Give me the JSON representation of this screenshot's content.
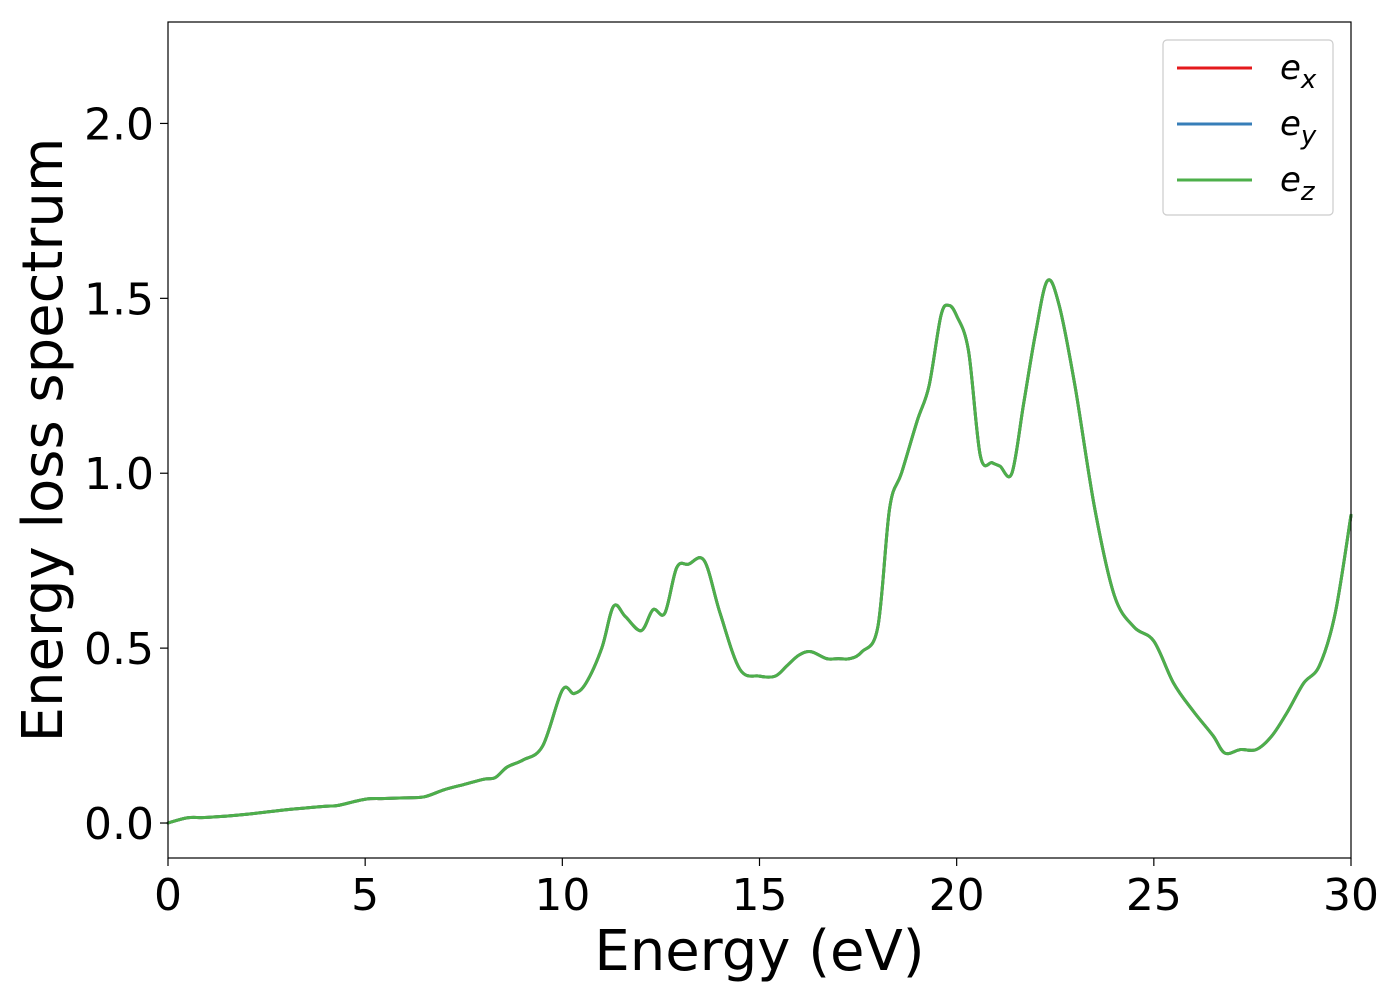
{
  "chart_data": {
    "type": "line",
    "title": "",
    "xlabel": "Energy (eV)",
    "ylabel": "Energy loss spectrum",
    "xlim": [
      0,
      30
    ],
    "ylim": [
      -0.1,
      2.29
    ],
    "xticks": [
      0,
      5,
      10,
      15,
      20,
      25,
      30
    ],
    "xtick_labels": [
      "0",
      "5",
      "10",
      "15",
      "20",
      "25",
      "30"
    ],
    "yticks": [
      0.0,
      0.5,
      1.0,
      1.5,
      2.0
    ],
    "ytick_labels": [
      "0.0",
      "0.5",
      "1.0",
      "1.5",
      "2.0"
    ],
    "grid": false,
    "legend_position": "top-right",
    "x": [
      0,
      0.5,
      1,
      2,
      3,
      4,
      4.3,
      5,
      5.5,
      6,
      6.5,
      7,
      7.5,
      8,
      8.3,
      8.6,
      9,
      9.5,
      10,
      10.3,
      10.6,
      11,
      11.3,
      11.6,
      12,
      12.3,
      12.6,
      12.9,
      13.2,
      13.6,
      14,
      14.5,
      15,
      15.4,
      15.7,
      16,
      16.3,
      16.7,
      17,
      17.3,
      17.6,
      18,
      18.3,
      18.6,
      19,
      19.3,
      19.6,
      19.8,
      20,
      20.3,
      20.6,
      20.9,
      21.1,
      21.4,
      21.7,
      22,
      22.3,
      22.6,
      23,
      23.5,
      24,
      24.5,
      25,
      25.5,
      26,
      26.5,
      26.8,
      27.2,
      27.6,
      28,
      28.4,
      28.8,
      29.2,
      29.6,
      30
    ],
    "series": [
      {
        "name": "e_x",
        "color": "#e41a1c",
        "values": [
          0.0,
          0.015,
          0.016,
          0.025,
          0.038,
          0.048,
          0.05,
          0.068,
          0.07,
          0.072,
          0.075,
          0.095,
          0.11,
          0.125,
          0.13,
          0.16,
          0.18,
          0.22,
          0.38,
          0.37,
          0.4,
          0.5,
          0.62,
          0.59,
          0.55,
          0.61,
          0.6,
          0.73,
          0.74,
          0.75,
          0.6,
          0.44,
          0.42,
          0.42,
          0.45,
          0.48,
          0.49,
          0.47,
          0.47,
          0.47,
          0.49,
          0.56,
          0.9,
          1.0,
          1.15,
          1.25,
          1.45,
          1.48,
          1.45,
          1.35,
          1.05,
          1.03,
          1.02,
          1.0,
          1.2,
          1.4,
          1.55,
          1.48,
          1.25,
          0.9,
          0.65,
          0.56,
          0.52,
          0.4,
          0.32,
          0.25,
          0.2,
          0.21,
          0.21,
          0.25,
          0.32,
          0.4,
          0.45,
          0.6,
          0.88
        ]
      },
      {
        "name": "e_y",
        "color": "#377eb8",
        "values": [
          0.0,
          0.015,
          0.016,
          0.025,
          0.038,
          0.048,
          0.05,
          0.068,
          0.07,
          0.072,
          0.075,
          0.095,
          0.11,
          0.125,
          0.13,
          0.16,
          0.18,
          0.22,
          0.38,
          0.37,
          0.4,
          0.5,
          0.62,
          0.59,
          0.55,
          0.61,
          0.6,
          0.73,
          0.74,
          0.75,
          0.6,
          0.44,
          0.42,
          0.42,
          0.45,
          0.48,
          0.49,
          0.47,
          0.47,
          0.47,
          0.49,
          0.56,
          0.9,
          1.0,
          1.15,
          1.25,
          1.45,
          1.48,
          1.45,
          1.35,
          1.05,
          1.03,
          1.02,
          1.0,
          1.2,
          1.4,
          1.55,
          1.48,
          1.25,
          0.9,
          0.65,
          0.56,
          0.52,
          0.4,
          0.32,
          0.25,
          0.2,
          0.21,
          0.21,
          0.25,
          0.32,
          0.4,
          0.45,
          0.6,
          0.88
        ]
      },
      {
        "name": "e_z",
        "color": "#4daf4a",
        "values": [
          0.0,
          0.015,
          0.016,
          0.025,
          0.038,
          0.048,
          0.05,
          0.068,
          0.07,
          0.072,
          0.075,
          0.095,
          0.11,
          0.125,
          0.13,
          0.16,
          0.18,
          0.22,
          0.38,
          0.37,
          0.4,
          0.5,
          0.62,
          0.59,
          0.55,
          0.61,
          0.6,
          0.73,
          0.74,
          0.75,
          0.6,
          0.44,
          0.42,
          0.42,
          0.45,
          0.48,
          0.49,
          0.47,
          0.47,
          0.47,
          0.49,
          0.56,
          0.9,
          1.0,
          1.15,
          1.25,
          1.45,
          1.48,
          1.45,
          1.35,
          1.05,
          1.03,
          1.02,
          1.0,
          1.2,
          1.4,
          1.55,
          1.48,
          1.25,
          0.9,
          0.65,
          0.56,
          0.52,
          0.4,
          0.32,
          0.25,
          0.2,
          0.21,
          0.21,
          0.25,
          0.32,
          0.4,
          0.45,
          0.6,
          0.88
        ]
      }
    ],
    "legend": [
      {
        "base": "e",
        "sub": "x",
        "color": "#e41a1c"
      },
      {
        "base": "e",
        "sub": "y",
        "color": "#377eb8"
      },
      {
        "base": "e",
        "sub": "z",
        "color": "#4daf4a"
      }
    ]
  }
}
